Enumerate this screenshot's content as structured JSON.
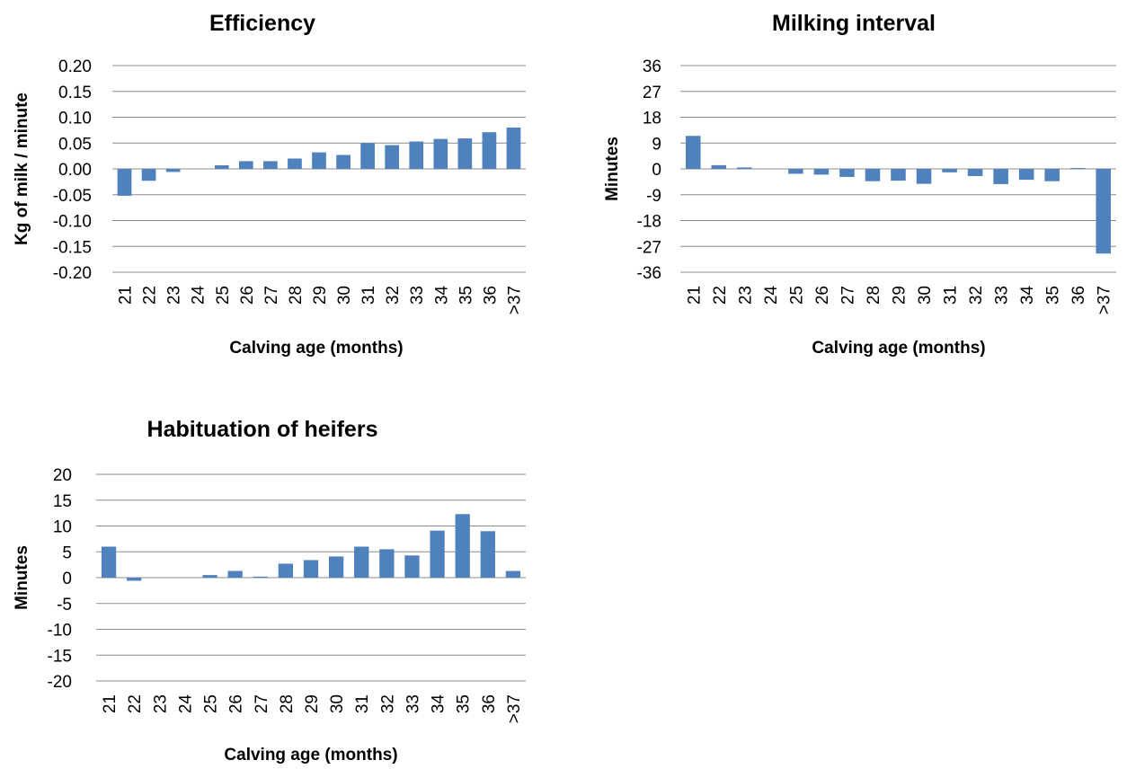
{
  "chart_data": [
    {
      "type": "bar",
      "title": "Efficiency",
      "xlabel": "Calving age (months)",
      "ylabel": "Kg of milk / minute",
      "categories": [
        "21",
        "22",
        "23",
        "24",
        "25",
        "26",
        "27",
        "28",
        "29",
        "30",
        "31",
        "32",
        "33",
        "34",
        "35",
        "36",
        ">37"
      ],
      "values": [
        -0.052,
        -0.023,
        -0.006,
        0.0,
        0.007,
        0.015,
        0.015,
        0.02,
        0.032,
        0.027,
        0.05,
        0.046,
        0.053,
        0.058,
        0.059,
        0.071,
        0.08
      ],
      "ylim": [
        -0.2,
        0.2
      ],
      "yticks": [
        "0.20",
        "0.15",
        "0.10",
        "0.05",
        "0.00",
        "-0.05",
        "-0.10",
        "-0.15",
        "-0.20"
      ],
      "ytick_values": [
        0.2,
        0.15,
        0.1,
        0.05,
        0.0,
        -0.05,
        -0.1,
        -0.15,
        -0.2
      ],
      "grid": true,
      "bar_color": "#4f81bd"
    },
    {
      "type": "bar",
      "title": "Milking interval",
      "xlabel": "Calving age (months)",
      "ylabel": "Minutes",
      "categories": [
        "21",
        "22",
        "23",
        "24",
        "25",
        "26",
        "27",
        "28",
        "29",
        "30",
        "31",
        "32",
        "33",
        "34",
        "35",
        "36",
        ">37"
      ],
      "values": [
        11.5,
        1.3,
        0.5,
        0.0,
        -1.7,
        -2.0,
        -2.8,
        -4.3,
        -4.1,
        -5.2,
        -1.2,
        -2.5,
        -5.3,
        -3.8,
        -4.3,
        0.3,
        -29.5
      ],
      "ylim": [
        -36,
        36
      ],
      "yticks": [
        "36",
        "27",
        "18",
        "9",
        "0",
        "-9",
        "-18",
        "-27",
        "-36"
      ],
      "ytick_values": [
        36,
        27,
        18,
        9,
        0,
        -9,
        -18,
        -27,
        -36
      ],
      "grid": true,
      "bar_color": "#4f81bd"
    },
    {
      "type": "bar",
      "title": "Habituation of heifers",
      "xlabel": "Calving age (months)",
      "ylabel": "Minutes",
      "categories": [
        "21",
        "22",
        "23",
        "24",
        "25",
        "26",
        "27",
        "28",
        "29",
        "30",
        "31",
        "32",
        "33",
        "34",
        "35",
        "36",
        ">37"
      ],
      "values": [
        6.0,
        -0.6,
        0.0,
        0.0,
        0.5,
        1.3,
        0.2,
        2.7,
        3.4,
        4.1,
        6.0,
        5.5,
        4.3,
        9.1,
        12.3,
        9.0,
        1.3
      ],
      "ylim": [
        -20,
        20
      ],
      "yticks": [
        "20",
        "15",
        "10",
        "5",
        "0",
        "-5",
        "-10",
        "-15",
        "-20"
      ],
      "ytick_values": [
        20,
        15,
        10,
        5,
        0,
        -5,
        -10,
        -15,
        -20
      ],
      "grid": true,
      "bar_color": "#4f81bd"
    }
  ]
}
